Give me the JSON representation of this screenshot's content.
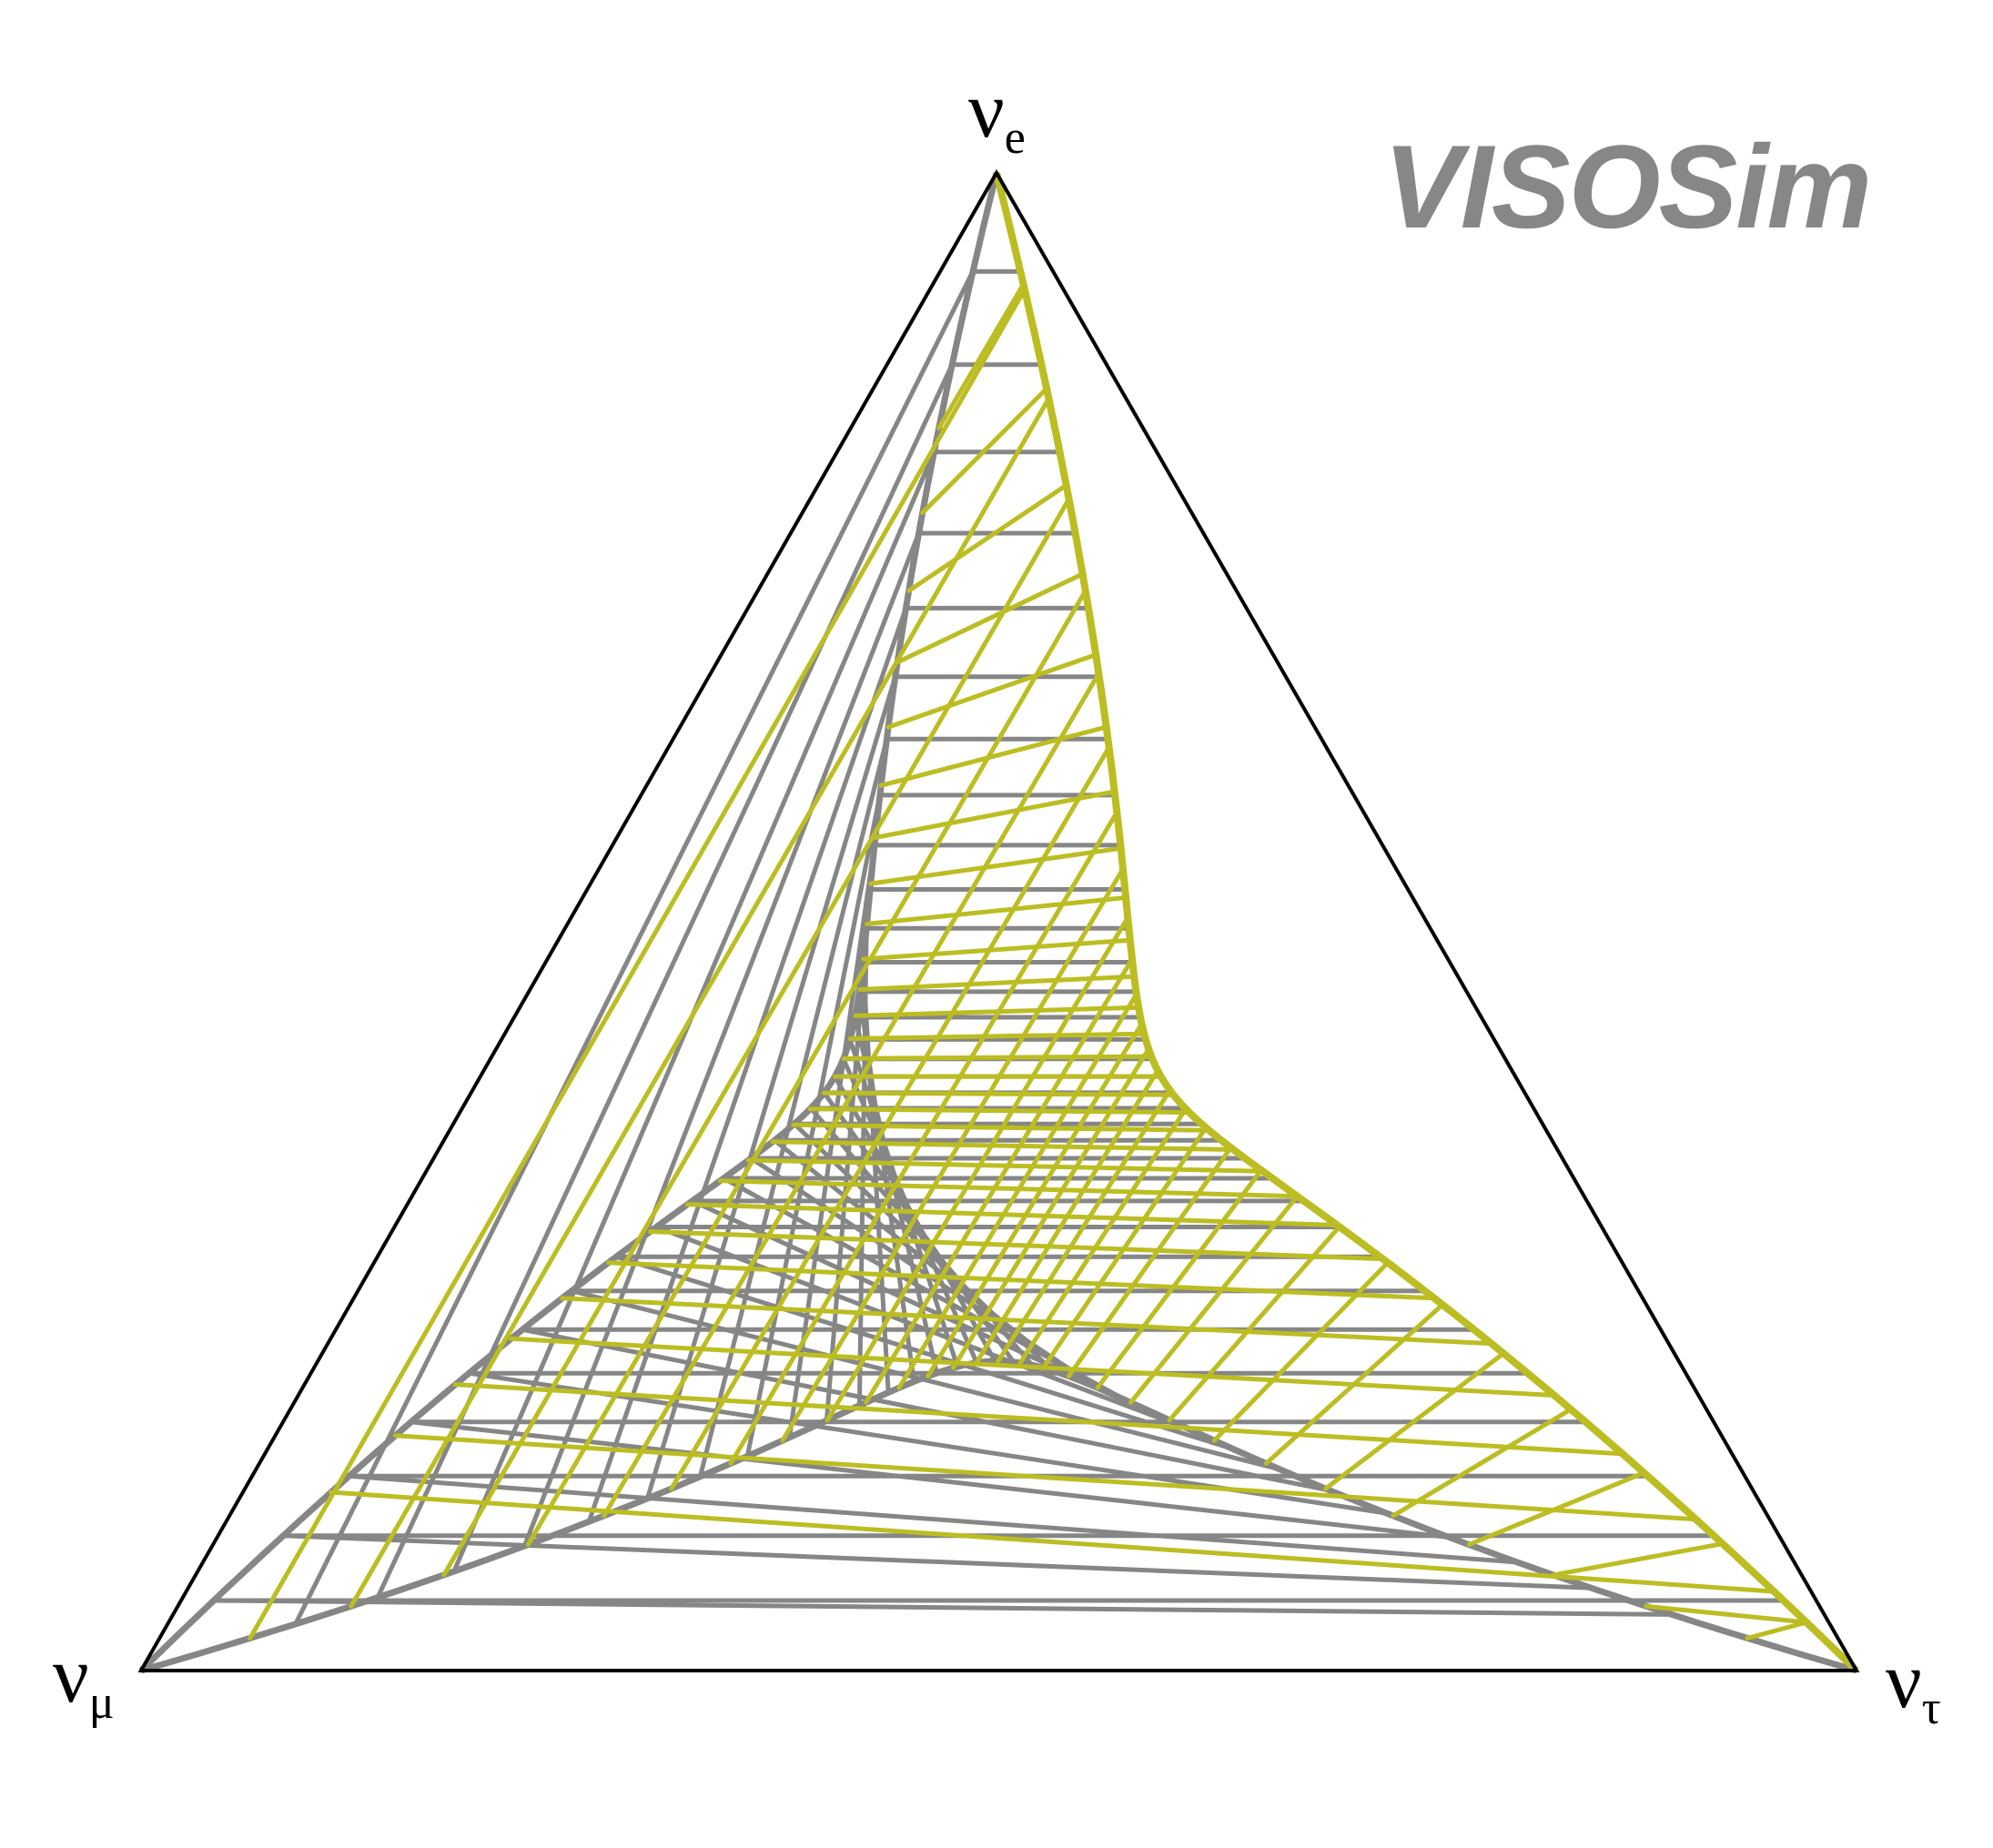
{
  "brand": {
    "text": "VISOSim",
    "color": "#878787"
  },
  "vertices": {
    "top": {
      "symbol": "ν",
      "subscript": "e"
    },
    "left": {
      "symbol": "ν",
      "subscript": "μ"
    },
    "right": {
      "symbol": "ν",
      "subscript": "τ"
    }
  },
  "colors": {
    "triangle_outline": "#000000",
    "gray_mesh": "#868686",
    "yellow_mesh": "#bcbd22"
  },
  "mesh": {
    "gray": {
      "chord_count": 34,
      "description_free": true
    },
    "yellow": {
      "chord_count": 30
    }
  }
}
